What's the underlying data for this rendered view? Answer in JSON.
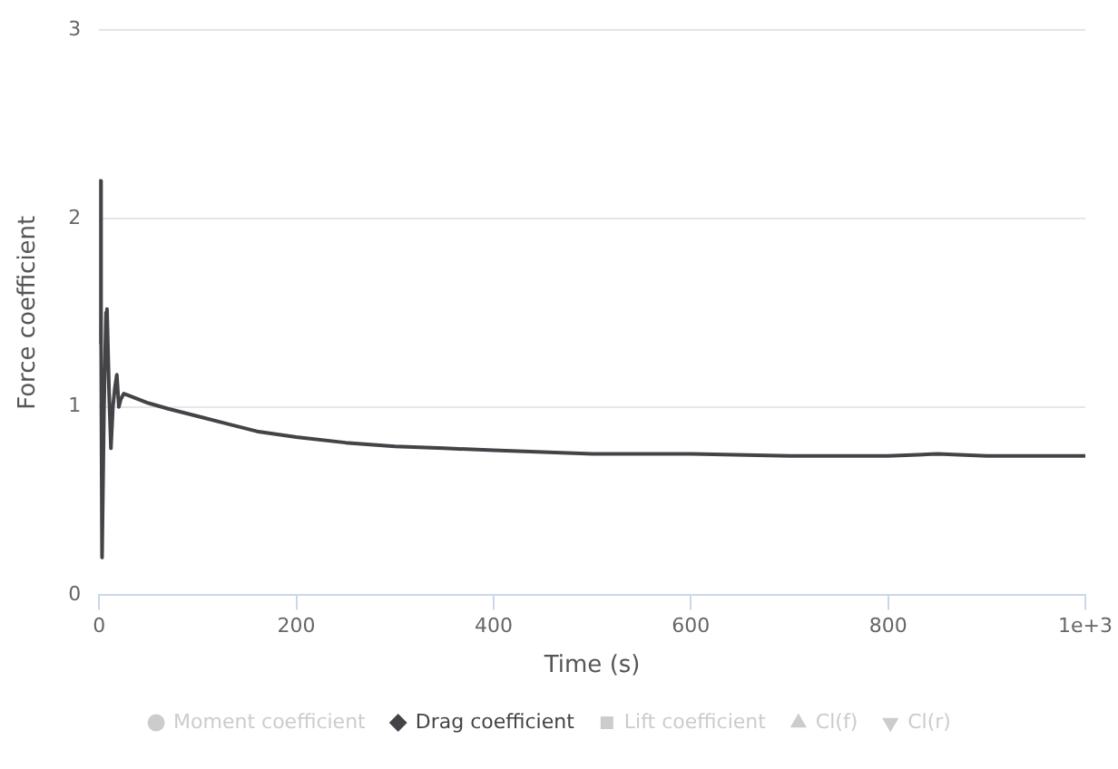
{
  "chart_data": {
    "type": "line",
    "xlabel": "Time (s)",
    "ylabel": "Force coefficient",
    "x": [
      0,
      1,
      2,
      3,
      5,
      7,
      8,
      10,
      12,
      14,
      16,
      18,
      20,
      22,
      25,
      30,
      40,
      50,
      70,
      100,
      130,
      160,
      200,
      250,
      300,
      350,
      400,
      450,
      500,
      600,
      700,
      800,
      850,
      900,
      1000
    ],
    "series": [
      {
        "name": "Moment coefficient",
        "color": "#cccccc",
        "values": [
          null,
          null,
          null,
          null,
          null,
          null,
          null,
          null,
          null,
          null,
          null,
          null,
          null,
          null,
          null,
          null,
          null,
          null,
          null,
          null,
          null,
          null,
          null,
          null,
          null,
          null,
          null,
          null,
          null,
          null,
          null,
          null,
          null,
          null,
          null
        ]
      },
      {
        "name": "Drag coefficient",
        "color": "#434348",
        "values": [
          1.33,
          2.2,
          1.3,
          0.2,
          1.0,
          1.5,
          1.52,
          1.1,
          0.78,
          1.0,
          1.1,
          1.17,
          1.0,
          1.04,
          1.07,
          1.06,
          1.04,
          1.02,
          0.99,
          0.95,
          0.91,
          0.87,
          0.84,
          0.81,
          0.79,
          0.78,
          0.77,
          0.76,
          0.75,
          0.75,
          0.74,
          0.74,
          0.75,
          0.74,
          0.74
        ]
      },
      {
        "name": "Lift coefficient",
        "color": "#cccccc",
        "values": [
          null,
          null,
          null,
          null,
          null,
          null,
          null,
          null,
          null,
          null,
          null,
          null,
          null,
          null,
          null,
          null,
          null,
          null,
          null,
          null,
          null,
          null,
          null,
          null,
          null,
          null,
          null,
          null,
          null,
          null,
          null,
          null,
          null,
          null,
          null
        ]
      },
      {
        "name": "Cl(f)",
        "color": "#cccccc",
        "values": [
          null,
          null,
          null,
          null,
          null,
          null,
          null,
          null,
          null,
          null,
          null,
          null,
          null,
          null,
          null,
          null,
          null,
          null,
          null,
          null,
          null,
          null,
          null,
          null,
          null,
          null,
          null,
          null,
          null,
          null,
          null,
          null,
          null,
          null,
          null
        ]
      },
      {
        "name": "Cl(r)",
        "color": "#cccccc",
        "values": [
          null,
          null,
          null,
          null,
          null,
          null,
          null,
          null,
          null,
          null,
          null,
          null,
          null,
          null,
          null,
          null,
          null,
          null,
          null,
          null,
          null,
          null,
          null,
          null,
          null,
          null,
          null,
          null,
          null,
          null,
          null,
          null,
          null,
          null,
          null
        ]
      }
    ],
    "xlim": [
      0,
      1000
    ],
    "xticks": [
      0,
      200,
      400,
      600,
      800,
      {
        "value": 1000,
        "label": "1e+3"
      }
    ],
    "ylim": [
      0,
      3
    ],
    "yticks": [
      0,
      1,
      2,
      3
    ],
    "grid": "y",
    "legend": "bottom",
    "marker": "none",
    "line_style": "solid"
  }
}
